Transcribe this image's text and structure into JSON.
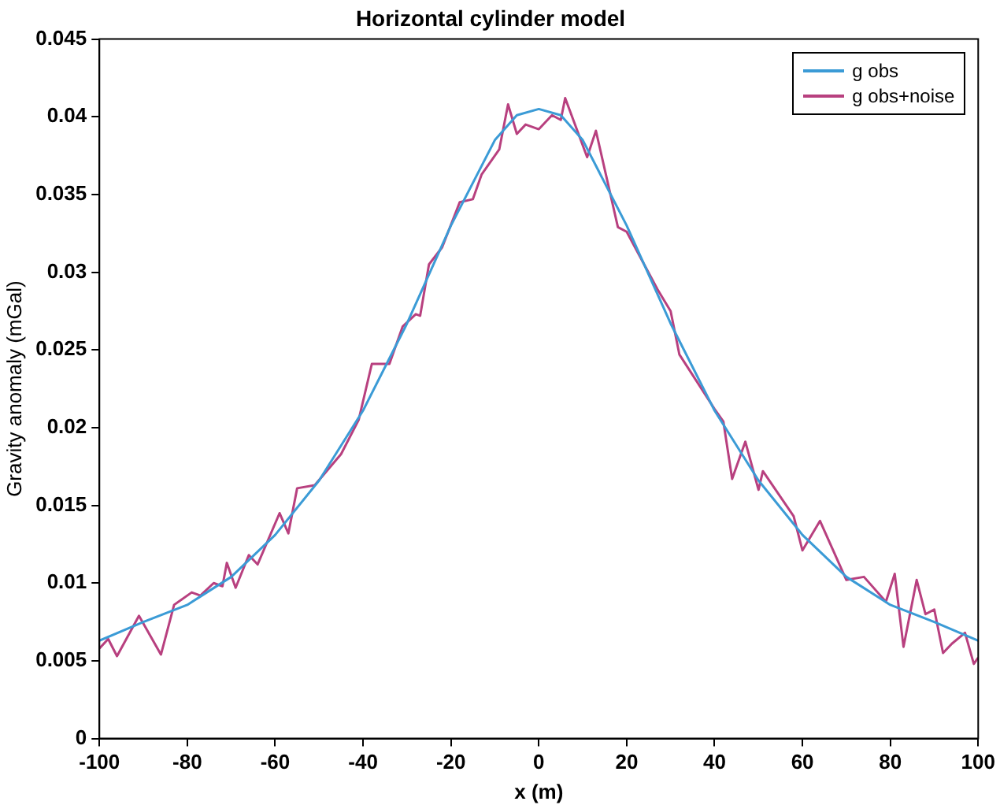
{
  "chart_data": {
    "type": "line",
    "title": "Horizontal cylinder model",
    "xlabel": "x (m)",
    "ylabel": "Gravity anomaly (mGal)",
    "xlim": [
      -100,
      100
    ],
    "xticks": [
      -100,
      -80,
      -60,
      -40,
      -20,
      0,
      20,
      40,
      60,
      80,
      100
    ],
    "ylim": [
      0,
      0.045
    ],
    "yticks": [
      0,
      0.005,
      0.01,
      0.015,
      0.02,
      0.025,
      0.03,
      0.035,
      0.04,
      0.045
    ],
    "grid": false,
    "legend": "top right",
    "marker": "none",
    "line_style": "solid",
    "series": [
      {
        "name": "g obs",
        "color": "#3b9bd6",
        "x": [
          -100,
          -90,
          -80,
          -70,
          -60,
          -50,
          -40,
          -30,
          -20,
          -10,
          -5,
          0,
          5,
          10,
          20,
          30,
          40,
          50,
          60,
          70,
          80,
          90,
          100
        ],
        "values": [
          0.0063,
          0.0075,
          0.0086,
          0.0104,
          0.0131,
          0.0166,
          0.0211,
          0.0267,
          0.033,
          0.0385,
          0.0401,
          0.0405,
          0.0401,
          0.0385,
          0.033,
          0.0267,
          0.0211,
          0.0166,
          0.0131,
          0.0104,
          0.0086,
          0.0075,
          0.0063
        ]
      },
      {
        "name": "g obs+noise",
        "color": "#b8407f",
        "x": [
          -100,
          -98,
          -96,
          -91,
          -86,
          -83,
          -79,
          -77,
          -74,
          -72,
          -71,
          -69,
          -66,
          -64,
          -59,
          -57,
          -55,
          -51,
          -45,
          -41,
          -38,
          -34,
          -31,
          -28,
          -27,
          -25,
          -22,
          -18,
          -15,
          -13,
          -9,
          -7,
          -5,
          -3,
          0,
          3,
          5,
          6,
          11,
          13,
          18,
          20,
          27,
          30,
          32,
          40,
          42,
          44,
          47,
          50,
          51,
          58,
          60,
          64,
          70,
          74,
          79,
          81,
          83,
          86,
          88,
          90,
          92,
          94,
          97,
          99,
          100
        ],
        "values": [
          0.0058,
          0.0064,
          0.0053,
          0.0079,
          0.0054,
          0.0086,
          0.0094,
          0.0092,
          0.01,
          0.0098,
          0.0113,
          0.0097,
          0.0118,
          0.0112,
          0.0145,
          0.0132,
          0.0161,
          0.0163,
          0.0183,
          0.0205,
          0.0241,
          0.0241,
          0.0265,
          0.0273,
          0.0272,
          0.0305,
          0.0316,
          0.0345,
          0.0347,
          0.0363,
          0.0379,
          0.0408,
          0.0389,
          0.0395,
          0.0392,
          0.0401,
          0.0398,
          0.0412,
          0.0374,
          0.0391,
          0.0329,
          0.0326,
          0.0289,
          0.0275,
          0.0247,
          0.0212,
          0.0204,
          0.0167,
          0.0191,
          0.016,
          0.0172,
          0.0143,
          0.0121,
          0.014,
          0.0102,
          0.0104,
          0.0088,
          0.0106,
          0.0059,
          0.0102,
          0.008,
          0.0083,
          0.0055,
          0.0061,
          0.0068,
          0.0048,
          0.0052
        ]
      }
    ]
  }
}
